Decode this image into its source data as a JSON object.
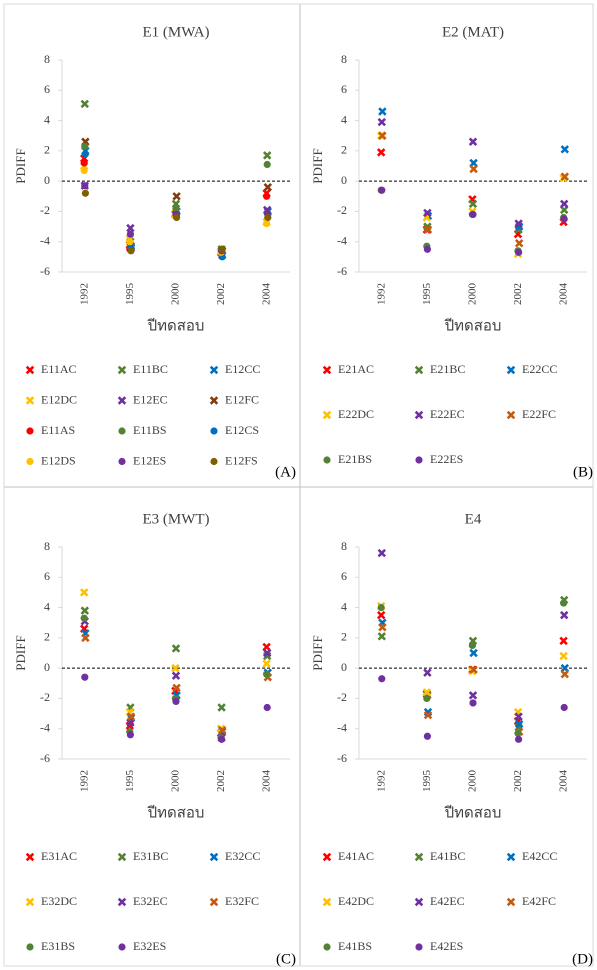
{
  "chart_data": [
    {
      "type": "scatter",
      "title": "E1 (MWA)",
      "panel_label": "(A)",
      "x_label": "ปีทดสอบ",
      "y_label": "PDIFF",
      "categories": [
        "1992",
        "1995",
        "2000",
        "2002",
        "2004"
      ],
      "ylim": [
        -6,
        8
      ],
      "yticks": [
        -6,
        -4,
        -2,
        0,
        2,
        4,
        6,
        8
      ],
      "zero_line": true,
      "series": [
        {
          "name": "E11AC",
          "color": "#ff0000",
          "marker": "x",
          "values": [
            1.5,
            -4.2,
            -2.2,
            -4.7,
            -0.8
          ]
        },
        {
          "name": "E11BC",
          "color": "#548235",
          "marker": "x",
          "values": [
            5.1,
            -4.0,
            -1.5,
            -4.5,
            1.7
          ]
        },
        {
          "name": "E12CC",
          "color": "#0070c0",
          "marker": "x",
          "values": [
            2.0,
            -4.3,
            -2.0,
            -4.9,
            -2.0
          ]
        },
        {
          "name": "E12DC",
          "color": "#ffc000",
          "marker": "x",
          "values": [
            1.0,
            -3.8,
            -2.1,
            -4.7,
            -2.7
          ]
        },
        {
          "name": "E12EC",
          "color": "#7030a0",
          "marker": "x",
          "values": [
            -0.3,
            -3.1,
            -2.2,
            -4.6,
            -1.9
          ]
        },
        {
          "name": "E12FC",
          "color": "#843c0c",
          "marker": "x",
          "values": [
            2.6,
            -4.4,
            -1.0,
            -4.6,
            -0.4
          ]
        },
        {
          "name": "E11AS",
          "color": "#ff0000",
          "marker": "o",
          "values": [
            1.2,
            -4.5,
            -2.3,
            -4.8,
            -1.0
          ]
        },
        {
          "name": "E11BS",
          "color": "#548235",
          "marker": "o",
          "values": [
            2.3,
            -4.2,
            -1.8,
            -4.5,
            1.1
          ]
        },
        {
          "name": "E12CS",
          "color": "#0070c0",
          "marker": "o",
          "values": [
            1.8,
            -4.4,
            -2.2,
            -5.0,
            -2.2
          ]
        },
        {
          "name": "E12DS",
          "color": "#ffc000",
          "marker": "o",
          "values": [
            0.7,
            -4.0,
            -2.3,
            -4.7,
            -2.8
          ]
        },
        {
          "name": "E12ES",
          "color": "#7030a0",
          "marker": "o",
          "values": [
            -0.3,
            -3.5,
            -2.2,
            -4.6,
            -2.1
          ]
        },
        {
          "name": "E12FS",
          "color": "#7f6000",
          "marker": "o",
          "values": [
            -0.8,
            -4.6,
            -2.4,
            -4.5,
            -2.4
          ]
        }
      ]
    },
    {
      "type": "scatter",
      "title": "E2 (MAT)",
      "panel_label": "(B)",
      "x_label": "ปีทดสอบ",
      "y_label": "PDIFF",
      "categories": [
        "1992",
        "1995",
        "2000",
        "2002",
        "2004"
      ],
      "ylim": [
        -6,
        8
      ],
      "yticks": [
        -6,
        -4,
        -2,
        0,
        2,
        4,
        6,
        8
      ],
      "zero_line": true,
      "series": [
        {
          "name": "E21AC",
          "color": "#ff0000",
          "marker": "x",
          "values": [
            1.9,
            -3.2,
            -1.2,
            -3.5,
            -2.7
          ]
        },
        {
          "name": "E21BC",
          "color": "#548235",
          "marker": "x",
          "values": [
            3.0,
            -3.0,
            -1.5,
            -3.2,
            -1.9
          ]
        },
        {
          "name": "E22CC",
          "color": "#0070c0",
          "marker": "x",
          "values": [
            4.6,
            -2.3,
            1.2,
            -3.0,
            2.1
          ]
        },
        {
          "name": "E22DC",
          "color": "#ffc000",
          "marker": "x",
          "values": [
            3.0,
            -2.4,
            -2.0,
            -4.8,
            0.2
          ]
        },
        {
          "name": "E22EC",
          "color": "#7030a0",
          "marker": "x",
          "values": [
            3.9,
            -2.1,
            2.6,
            -2.8,
            -1.5
          ]
        },
        {
          "name": "E22FC",
          "color": "#c55a11",
          "marker": "x",
          "values": [
            3.0,
            -3.2,
            0.8,
            -4.1,
            0.3
          ]
        },
        {
          "name": "E21BS",
          "color": "#548235",
          "marker": "o",
          "values": [
            -0.6,
            -4.3,
            -2.2,
            -4.6,
            -2.4
          ]
        },
        {
          "name": "E22ES",
          "color": "#7030a0",
          "marker": "o",
          "values": [
            -0.6,
            -4.5,
            -2.2,
            -4.7,
            -2.5
          ]
        }
      ]
    },
    {
      "type": "scatter",
      "title": "E3 (MWT)",
      "panel_label": "(C)",
      "x_label": "ปีทดสอบ",
      "y_label": "PDIFF",
      "categories": [
        "1992",
        "1995",
        "2000",
        "2002",
        "2004"
      ],
      "ylim": [
        -6,
        8
      ],
      "yticks": [
        -6,
        -4,
        -2,
        0,
        2,
        4,
        6,
        8
      ],
      "zero_line": true,
      "series": [
        {
          "name": "E31AC",
          "color": "#ff0000",
          "marker": "x",
          "values": [
            2.6,
            -3.8,
            -1.5,
            -4.3,
            1.4
          ]
        },
        {
          "name": "E31BC",
          "color": "#548235",
          "marker": "x",
          "values": [
            3.8,
            -2.6,
            1.3,
            -2.6,
            0.8
          ]
        },
        {
          "name": "E32CC",
          "color": "#0070c0",
          "marker": "x",
          "values": [
            2.3,
            -3.3,
            -1.8,
            -4.2,
            -0.3
          ]
        },
        {
          "name": "E32DC",
          "color": "#ffc000",
          "marker": "x",
          "values": [
            5.0,
            -2.9,
            0.0,
            -4.0,
            0.3
          ]
        },
        {
          "name": "E32EC",
          "color": "#7030a0",
          "marker": "x",
          "values": [
            3.1,
            -3.6,
            -0.5,
            -4.6,
            1.0
          ]
        },
        {
          "name": "E32FC",
          "color": "#c55a11",
          "marker": "x",
          "values": [
            2.0,
            -3.2,
            -1.3,
            -4.1,
            -0.6
          ]
        },
        {
          "name": "E31BS",
          "color": "#548235",
          "marker": "o",
          "values": [
            3.3,
            -4.2,
            -2.0,
            -4.6,
            -0.4
          ]
        },
        {
          "name": "E32ES",
          "color": "#7030a0",
          "marker": "o",
          "values": [
            -0.6,
            -4.4,
            -2.2,
            -4.7,
            -2.6
          ]
        }
      ]
    },
    {
      "type": "scatter",
      "title": "E4",
      "panel_label": "(D)",
      "x_label": "ปีทดสอบ",
      "y_label": "PDIFF",
      "categories": [
        "1992",
        "1995",
        "2000",
        "2002",
        "2004"
      ],
      "ylim": [
        -6,
        8
      ],
      "yticks": [
        -6,
        -4,
        -2,
        0,
        2,
        4,
        6,
        8
      ],
      "zero_line": true,
      "series": [
        {
          "name": "E41AC",
          "color": "#ff0000",
          "marker": "x",
          "values": [
            3.5,
            -1.7,
            -0.1,
            -3.5,
            1.8
          ]
        },
        {
          "name": "E41BC",
          "color": "#548235",
          "marker": "x",
          "values": [
            2.1,
            -1.8,
            1.8,
            -3.9,
            4.5
          ]
        },
        {
          "name": "E42CC",
          "color": "#0070c0",
          "marker": "x",
          "values": [
            3.0,
            -2.9,
            1.0,
            -3.7,
            0.0
          ]
        },
        {
          "name": "E42DC",
          "color": "#ffc000",
          "marker": "x",
          "values": [
            4.1,
            -1.6,
            -0.2,
            -2.9,
            0.8
          ]
        },
        {
          "name": "E42EC",
          "color": "#7030a0",
          "marker": "x",
          "values": [
            7.6,
            -0.3,
            -1.8,
            -3.2,
            3.5
          ]
        },
        {
          "name": "E42FC",
          "color": "#c55a11",
          "marker": "x",
          "values": [
            2.7,
            -3.1,
            -0.1,
            -4.2,
            -0.4
          ]
        },
        {
          "name": "E41BS",
          "color": "#548235",
          "marker": "o",
          "values": [
            4.0,
            -2.0,
            1.5,
            -4.3,
            4.3
          ]
        },
        {
          "name": "E42ES",
          "color": "#7030a0",
          "marker": "o",
          "values": [
            -0.7,
            -4.5,
            -2.3,
            -4.7,
            -2.6
          ]
        }
      ]
    }
  ]
}
